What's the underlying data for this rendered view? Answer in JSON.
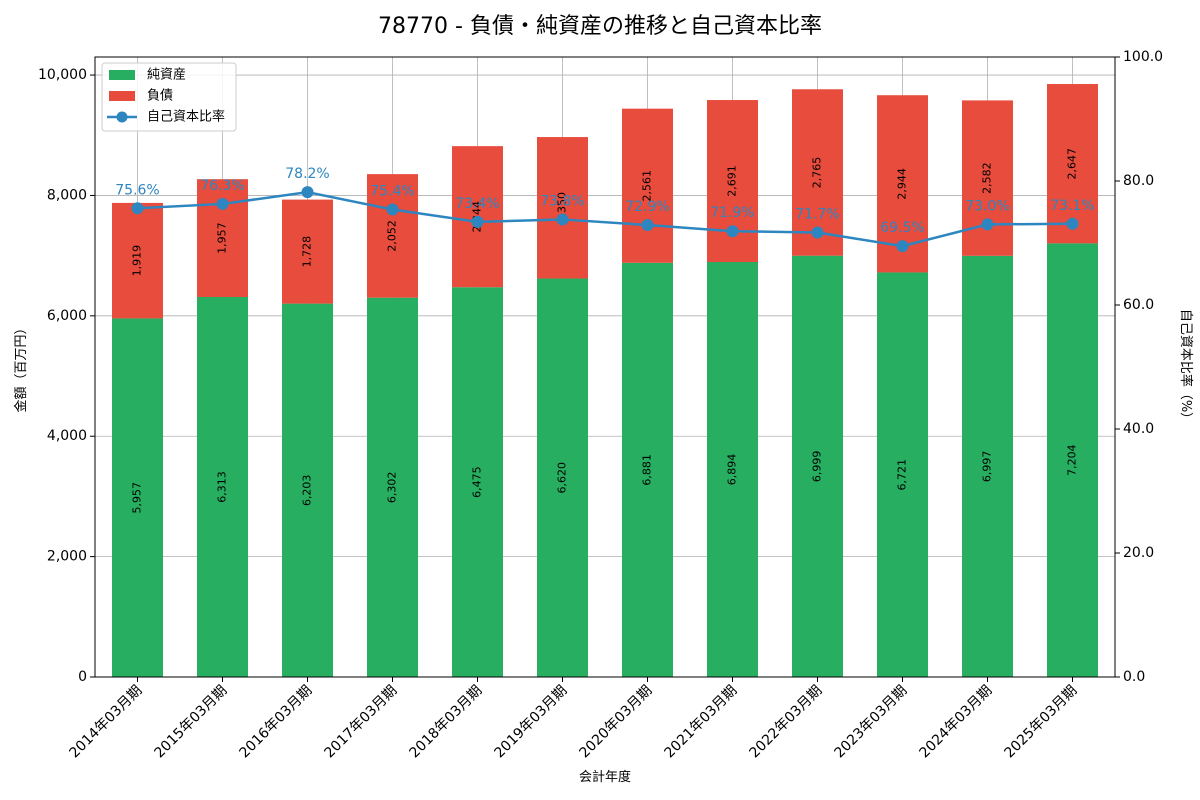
{
  "chart_data": {
    "type": "bar",
    "stacked": true,
    "title": "78770 - 負債・純資産の推移と自己資本比率",
    "xlabel": "会計年度",
    "ylabel": "金額（百万円）",
    "y2label": "自己資本比率（%）",
    "ylim": [
      0,
      10300
    ],
    "y2lim": [
      0,
      100
    ],
    "yticks": [
      0,
      2000,
      4000,
      6000,
      8000,
      10000
    ],
    "ytick_labels": [
      "0",
      "2,000",
      "4,000",
      "6,000",
      "8,000",
      "10,000"
    ],
    "y2ticks": [
      0,
      20,
      40,
      60,
      80,
      100
    ],
    "y2tick_labels": [
      "0.0",
      "20.0",
      "40.0",
      "60.0",
      "80.0",
      "100.0"
    ],
    "grid": true,
    "legend_position": "top-left",
    "categories": [
      "2014年03月期",
      "2015年03月期",
      "2016年03月期",
      "2017年03月期",
      "2018年03月期",
      "2019年03月期",
      "2020年03月期",
      "2021年03月期",
      "2022年03月期",
      "2023年03月期",
      "2024年03月期",
      "2025年03月期"
    ],
    "series": [
      {
        "name": "純資産",
        "kind": "bar",
        "color": "#27ae60",
        "values": [
          5957,
          6313,
          6203,
          6302,
          6475,
          6620,
          6881,
          6894,
          6999,
          6721,
          6997,
          7204
        ],
        "labels": [
          "5,957",
          "6,313",
          "6,203",
          "6,302",
          "6,475",
          "6,620",
          "6,881",
          "6,894",
          "6,999",
          "6,721",
          "6,997",
          "7,204"
        ]
      },
      {
        "name": "負債",
        "kind": "bar",
        "color": "#e74c3c",
        "values": [
          1919,
          1957,
          1728,
          2052,
          2344,
          2350,
          2561,
          2691,
          2765,
          2944,
          2582,
          2647
        ],
        "labels": [
          "1,919",
          "1,957",
          "1,728",
          "2,052",
          "2,344",
          "2,350",
          "2,561",
          "2,691",
          "2,765",
          "2,944",
          "2,582",
          "2,647"
        ]
      },
      {
        "name": "自己資本比率",
        "kind": "line",
        "color": "#2e86c1",
        "axis": "right",
        "values": [
          75.6,
          76.3,
          78.2,
          75.4,
          73.4,
          73.8,
          72.9,
          71.9,
          71.7,
          69.5,
          73.0,
          73.1
        ],
        "labels": [
          "75.6%",
          "76.3%",
          "78.2%",
          "75.4%",
          "73.4%",
          "73.8%",
          "72.9%",
          "71.9%",
          "71.7%",
          "69.5%",
          "73.0%",
          "73.1%"
        ]
      }
    ]
  }
}
